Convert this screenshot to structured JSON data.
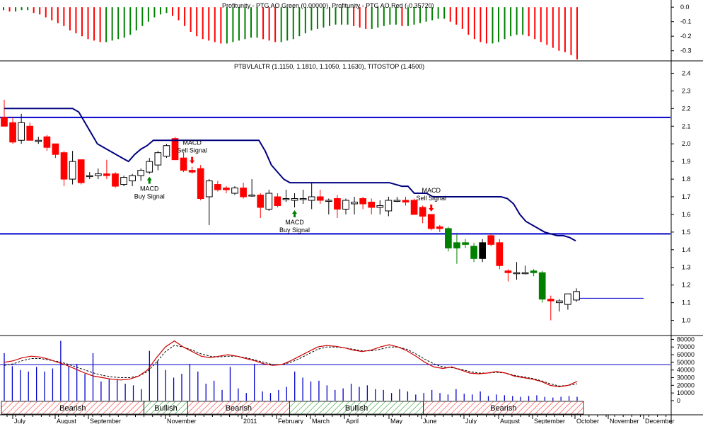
{
  "colors": {
    "up_candle": "#ffffff",
    "down_candle": "#ff0000",
    "green_candle": "#008000",
    "stop_line": "#000080",
    "hline": "#0000cc",
    "ao_green": "#008000",
    "ao_red": "#ff0000",
    "macd_line": "#cc0000",
    "signal_line": "#000000",
    "volume": "#0000cc"
  },
  "chart_data": [
    {
      "type": "bar",
      "panel": "oscillator",
      "title": "Profitunity - PTG AO Green (0.00000), Profitunity - PTG AO Red (-0.35720)",
      "y_ticks": [
        "0.0",
        "-0.1",
        "-0.2",
        "-0.3"
      ],
      "ylim": [
        -0.36,
        0.03
      ],
      "values": [
        -0.02,
        -0.03,
        -0.03,
        -0.02,
        -0.02,
        -0.04,
        -0.05,
        -0.07,
        -0.09,
        -0.11,
        -0.13,
        -0.16,
        -0.18,
        -0.2,
        -0.22,
        -0.23,
        -0.24,
        -0.24,
        -0.23,
        -0.22,
        -0.21,
        -0.19,
        -0.16,
        -0.13,
        -0.1,
        -0.07,
        -0.05,
        -0.04,
        -0.06,
        -0.09,
        -0.13,
        -0.17,
        -0.2,
        -0.22,
        -0.23,
        -0.24,
        -0.25,
        -0.25,
        -0.24,
        -0.23,
        -0.22,
        -0.21,
        -0.21,
        -0.22,
        -0.23,
        -0.24,
        -0.24,
        -0.23,
        -0.22,
        -0.2,
        -0.18,
        -0.16,
        -0.15,
        -0.14,
        -0.13,
        -0.12,
        -0.12,
        -0.12,
        -0.13,
        -0.14,
        -0.15,
        -0.15,
        -0.14,
        -0.13,
        -0.12,
        -0.12,
        -0.13,
        -0.13,
        -0.12,
        -0.11,
        -0.1,
        -0.09,
        -0.08,
        -0.08,
        -0.1,
        -0.12,
        -0.15,
        -0.19,
        -0.22,
        -0.24,
        -0.25,
        -0.25,
        -0.24,
        -0.22,
        -0.2,
        -0.19,
        -0.19,
        -0.2,
        -0.22,
        -0.24,
        -0.26,
        -0.28,
        -0.3,
        -0.31,
        -0.33,
        -0.36
      ],
      "colors_up": "green",
      "colors_down": "red"
    },
    {
      "type": "candlestick",
      "panel": "price",
      "title": "PTBVLALTR (1.1150, 1.1810, 1.1050, 1.1630), TITOSTOP (1.4500)",
      "y_ticks": [
        "2.4",
        "2.3",
        "2.2",
        "2.1",
        "2.0",
        "1.9",
        "1.8",
        "1.7",
        "1.6",
        "1.5",
        "1.4",
        "1.3",
        "1.2",
        "1.1",
        "1.0"
      ],
      "ylim": [
        0.93,
        2.43
      ],
      "hlines": [
        2.15,
        1.49,
        1.125
      ],
      "candles": [
        {
          "o": 2.15,
          "h": 2.25,
          "l": 2.1,
          "c": 2.1
        },
        {
          "o": 2.12,
          "h": 2.15,
          "l": 2.0,
          "c": 2.01
        },
        {
          "o": 2.02,
          "h": 2.17,
          "l": 2.0,
          "c": 2.12
        },
        {
          "o": 2.1,
          "h": 2.12,
          "l": 2.02,
          "c": 2.02
        },
        {
          "o": 2.02,
          "h": 2.04,
          "l": 2.0,
          "c": 2.02
        },
        {
          "o": 2.04,
          "h": 2.05,
          "l": 1.96,
          "c": 1.98
        },
        {
          "o": 2.0,
          "h": 2.0,
          "l": 1.92,
          "c": 1.94
        },
        {
          "o": 1.95,
          "h": 1.96,
          "l": 1.76,
          "c": 1.8
        },
        {
          "o": 1.8,
          "h": 1.96,
          "l": 1.77,
          "c": 1.9
        },
        {
          "o": 1.91,
          "h": 1.91,
          "l": 1.77,
          "c": 1.78
        },
        {
          "o": 1.82,
          "h": 1.84,
          "l": 1.8,
          "c": 1.82
        },
        {
          "o": 1.82,
          "h": 1.86,
          "l": 1.8,
          "c": 1.83
        },
        {
          "o": 1.83,
          "h": 1.91,
          "l": 1.8,
          "c": 1.82
        },
        {
          "o": 1.83,
          "h": 1.84,
          "l": 1.75,
          "c": 1.76
        },
        {
          "o": 1.77,
          "h": 1.82,
          "l": 1.76,
          "c": 1.81
        },
        {
          "o": 1.79,
          "h": 1.83,
          "l": 1.76,
          "c": 1.82
        },
        {
          "o": 1.82,
          "h": 1.86,
          "l": 1.79,
          "c": 1.85
        },
        {
          "o": 1.84,
          "h": 1.92,
          "l": 1.83,
          "c": 1.9
        },
        {
          "o": 1.88,
          "h": 1.96,
          "l": 1.85,
          "c": 1.95
        },
        {
          "o": 1.93,
          "h": 2.0,
          "l": 1.92,
          "c": 1.99
        },
        {
          "o": 2.03,
          "h": 2.04,
          "l": 1.92,
          "c": 1.91
        },
        {
          "o": 1.92,
          "h": 1.95,
          "l": 1.84,
          "c": 1.85
        },
        {
          "o": 1.85,
          "h": 1.87,
          "l": 1.83,
          "c": 1.84
        },
        {
          "o": 1.86,
          "h": 1.88,
          "l": 1.68,
          "c": 1.69
        },
        {
          "o": 1.7,
          "h": 1.8,
          "l": 1.54,
          "c": 1.79
        },
        {
          "o": 1.77,
          "h": 1.79,
          "l": 1.73,
          "c": 1.74
        },
        {
          "o": 1.75,
          "h": 1.76,
          "l": 1.72,
          "c": 1.74
        },
        {
          "o": 1.72,
          "h": 1.76,
          "l": 1.71,
          "c": 1.75
        },
        {
          "o": 1.75,
          "h": 1.78,
          "l": 1.69,
          "c": 1.7
        },
        {
          "o": 1.71,
          "h": 1.8,
          "l": 1.7,
          "c": 1.71
        },
        {
          "o": 1.71,
          "h": 1.72,
          "l": 1.58,
          "c": 1.64
        },
        {
          "o": 1.63,
          "h": 1.74,
          "l": 1.62,
          "c": 1.72
        },
        {
          "o": 1.7,
          "h": 1.72,
          "l": 1.64,
          "c": 1.65
        },
        {
          "o": 1.69,
          "h": 1.74,
          "l": 1.67,
          "c": 1.69
        },
        {
          "o": 1.68,
          "h": 1.72,
          "l": 1.64,
          "c": 1.69
        },
        {
          "o": 1.69,
          "h": 1.74,
          "l": 1.66,
          "c": 1.69
        },
        {
          "o": 1.68,
          "h": 1.78,
          "l": 1.63,
          "c": 1.7
        },
        {
          "o": 1.7,
          "h": 1.74,
          "l": 1.66,
          "c": 1.68
        },
        {
          "o": 1.68,
          "h": 1.69,
          "l": 1.6,
          "c": 1.68
        },
        {
          "o": 1.69,
          "h": 1.71,
          "l": 1.58,
          "c": 1.63
        },
        {
          "o": 1.63,
          "h": 1.69,
          "l": 1.6,
          "c": 1.68
        },
        {
          "o": 1.66,
          "h": 1.7,
          "l": 1.6,
          "c": 1.67
        },
        {
          "o": 1.69,
          "h": 1.7,
          "l": 1.63,
          "c": 1.66
        },
        {
          "o": 1.67,
          "h": 1.69,
          "l": 1.6,
          "c": 1.64
        },
        {
          "o": 1.64,
          "h": 1.68,
          "l": 1.6,
          "c": 1.65
        },
        {
          "o": 1.62,
          "h": 1.7,
          "l": 1.59,
          "c": 1.68
        },
        {
          "o": 1.68,
          "h": 1.7,
          "l": 1.67,
          "c": 1.68
        },
        {
          "o": 1.68,
          "h": 1.7,
          "l": 1.65,
          "c": 1.67
        },
        {
          "o": 1.68,
          "h": 1.69,
          "l": 1.6,
          "c": 1.6
        },
        {
          "o": 1.64,
          "h": 1.65,
          "l": 1.55,
          "c": 1.59
        },
        {
          "o": 1.6,
          "h": 1.6,
          "l": 1.51,
          "c": 1.52
        },
        {
          "o": 1.53,
          "h": 1.54,
          "l": 1.5,
          "c": 1.52
        },
        {
          "o": 1.52,
          "h": 1.53,
          "l": 1.39,
          "c": 1.41
        },
        {
          "o": 1.44,
          "h": 1.49,
          "l": 1.32,
          "c": 1.41
        },
        {
          "o": 1.44,
          "h": 1.46,
          "l": 1.41,
          "c": 1.43
        },
        {
          "o": 1.42,
          "h": 1.44,
          "l": 1.33,
          "c": 1.35
        },
        {
          "o": 1.35,
          "h": 1.46,
          "l": 1.33,
          "c": 1.44
        },
        {
          "o": 1.48,
          "h": 1.49,
          "l": 1.42,
          "c": 1.43
        },
        {
          "o": 1.44,
          "h": 1.46,
          "l": 1.29,
          "c": 1.31
        },
        {
          "o": 1.28,
          "h": 1.29,
          "l": 1.22,
          "c": 1.27
        },
        {
          "o": 1.27,
          "h": 1.33,
          "l": 1.23,
          "c": 1.27
        },
        {
          "o": 1.27,
          "h": 1.31,
          "l": 1.26,
          "c": 1.27
        },
        {
          "o": 1.28,
          "h": 1.29,
          "l": 1.25,
          "c": 1.27
        },
        {
          "o": 1.27,
          "h": 1.28,
          "l": 1.1,
          "c": 1.12
        },
        {
          "o": 1.12,
          "h": 1.14,
          "l": 1.0,
          "c": 1.11
        },
        {
          "o": 1.1,
          "h": 1.12,
          "l": 1.05,
          "c": 1.11
        },
        {
          "o": 1.09,
          "h": 1.15,
          "l": 1.06,
          "c": 1.15
        },
        {
          "o": 1.115,
          "h": 1.181,
          "l": 1.105,
          "c": 1.163
        }
      ],
      "stop_line": [
        2.2,
        2.2,
        2.2,
        2.2,
        2.2,
        2.2,
        2.2,
        2.2,
        2.2,
        2.2,
        2.2,
        2.2,
        2.18,
        2.12,
        2.06,
        2.0,
        1.98,
        1.96,
        1.94,
        1.92,
        1.9,
        1.94,
        1.97,
        1.99,
        2.02,
        2.02,
        2.02,
        2.02,
        2.02,
        2.02,
        2.02,
        2.02,
        2.02,
        2.02,
        2.02,
        2.02,
        2.02,
        2.02,
        2.02,
        2.02,
        2.02,
        2.02,
        1.96,
        1.88,
        1.84,
        1.8,
        1.78,
        1.78,
        1.78,
        1.78,
        1.78,
        1.78,
        1.78,
        1.78,
        1.78,
        1.78,
        1.78,
        1.78,
        1.78,
        1.78,
        1.78,
        1.78,
        1.78,
        1.77,
        1.76,
        1.76,
        1.72,
        1.72,
        1.72,
        1.7,
        1.7,
        1.7,
        1.7,
        1.7,
        1.7,
        1.7,
        1.7,
        1.7,
        1.7,
        1.7,
        1.7,
        1.69,
        1.66,
        1.6,
        1.56,
        1.54,
        1.52,
        1.5,
        1.49,
        1.48,
        1.48,
        1.47,
        1.45
      ],
      "annotations": [
        {
          "label": "MACD Buy Signal",
          "lines": [
            "MACD",
            "Buy Signal"
          ],
          "direction": "up",
          "bar": 17
        },
        {
          "label": "MACD Sell Signal",
          "lines": [
            "MACD",
            "Sell Signal"
          ],
          "direction": "down",
          "bar": 22
        },
        {
          "label": "MACD Buy Signal",
          "lines": [
            "MACD",
            "Buy Signal"
          ],
          "direction": "up",
          "bar": 34
        },
        {
          "label": "MACD Sell Signal",
          "lines": [
            "MACD",
            "Sell Signal"
          ],
          "direction": "down",
          "bar": 50
        }
      ]
    },
    {
      "type": "line",
      "panel": "volume-macd",
      "y_ticks": [
        "80000",
        "70000",
        "60000",
        "50000",
        "40000",
        "30000",
        "20000",
        "10000",
        "0"
      ],
      "ylim": [
        0,
        85000
      ],
      "hline": 47000,
      "volume": [
        62000,
        45000,
        40000,
        38000,
        44000,
        38000,
        42000,
        78000,
        45000,
        48000,
        35000,
        62000,
        25000,
        28000,
        28000,
        22000,
        20000,
        15000,
        65000,
        52000,
        40000,
        30000,
        35000,
        48000,
        38000,
        22000,
        26000,
        14000,
        44000,
        16000,
        10000,
        48000,
        12000,
        10000,
        14000,
        18000,
        38000,
        30000,
        25000,
        26000,
        20000,
        14000,
        16000,
        22000,
        18000,
        20000,
        15000,
        14000,
        10000,
        15000,
        12000,
        8000,
        10000,
        14000,
        10000,
        8000,
        15000,
        9000,
        8000,
        12000,
        6000,
        8000,
        7000,
        6000,
        5000,
        6000,
        7000,
        5000,
        4000,
        5000,
        6000,
        5000
      ],
      "macd_line": [
        50000,
        52000,
        56000,
        58000,
        57000,
        54000,
        50000,
        46000,
        41000,
        36000,
        32000,
        30000,
        28000,
        27000,
        28000,
        32000,
        40000,
        56000,
        70000,
        78000,
        70000,
        64000,
        58000,
        56000,
        58000,
        60000,
        58000,
        55000,
        52000,
        48000,
        46000,
        47000,
        52000,
        58000,
        64000,
        70000,
        72000,
        71000,
        69000,
        66000,
        64000,
        66000,
        70000,
        73000,
        70000,
        65000,
        58000,
        50000,
        44000,
        42000,
        44000,
        40000,
        36000,
        35000,
        36000,
        38000,
        36000,
        32000,
        30000,
        28000,
        25000,
        20000,
        18000,
        20000,
        25000
      ],
      "signal_line": [
        46000,
        48000,
        52000,
        55000,
        55000,
        53000,
        51000,
        48000,
        44000,
        40000,
        36000,
        33000,
        31000,
        30000,
        30000,
        32000,
        38000,
        50000,
        64000,
        72000,
        70000,
        66000,
        61000,
        58000,
        57000,
        58000,
        58000,
        56000,
        53000,
        50000,
        47000,
        47000,
        50000,
        55000,
        61000,
        67000,
        70000,
        70000,
        69000,
        67000,
        65000,
        65000,
        67000,
        70000,
        70000,
        67000,
        61000,
        54000,
        48000,
        44000,
        43000,
        41000,
        38000,
        36000,
        36000,
        37000,
        36000,
        33000,
        31000,
        29000,
        26000,
        22000,
        19000,
        20000,
        22000
      ],
      "band": [
        {
          "label": "Bearish",
          "state": "bearish",
          "from": 0,
          "to": 0.245
        },
        {
          "label": "Bullish",
          "state": "bullish",
          "from": 0.245,
          "to": 0.32
        },
        {
          "label": "Bearish",
          "state": "bearish",
          "from": 0.32,
          "to": 0.495
        },
        {
          "label": "Bullish",
          "state": "bullish",
          "from": 0.495,
          "to": 0.725
        },
        {
          "label": "Bearish",
          "state": "bearish",
          "from": 0.725,
          "to": 1.0
        }
      ]
    }
  ],
  "x_axis": {
    "labels": [
      "July",
      "August",
      "September",
      "November",
      "2011",
      "February",
      "March",
      "April",
      "May",
      "June",
      "July",
      "August",
      "September",
      "October",
      "November",
      "December"
    ]
  }
}
